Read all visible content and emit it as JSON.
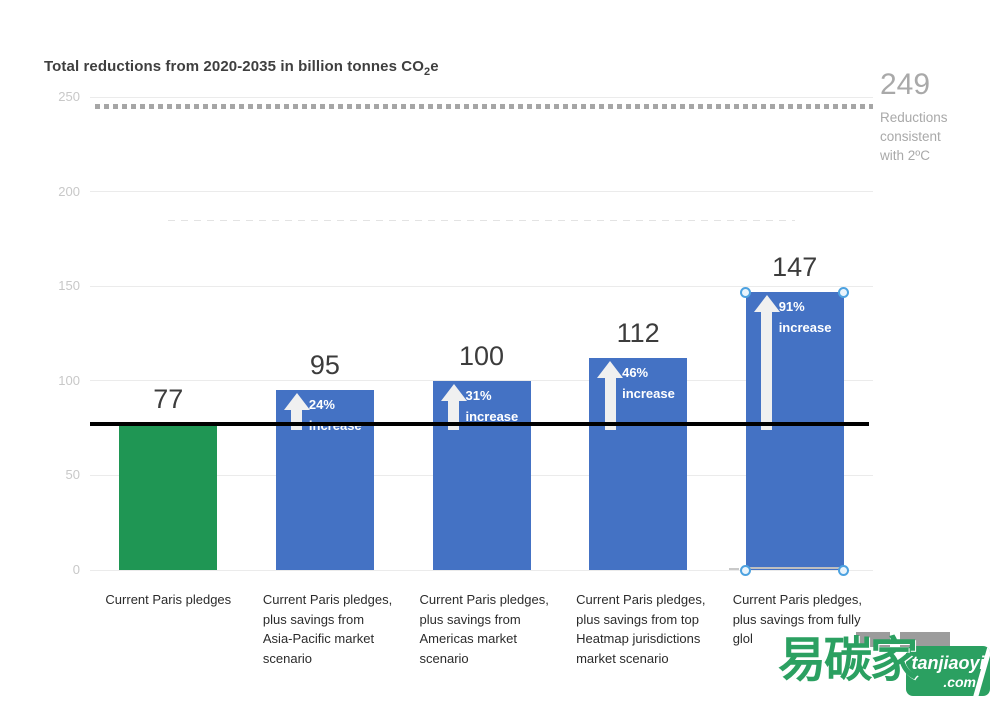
{
  "title": {
    "prefix": "Total reductions from 2020-2035 in billion tonnes CO",
    "subscript": "2",
    "suffix": "e"
  },
  "annotation_249": {
    "value": "249",
    "lines": [
      "Reductions",
      "consistent",
      "with 2ºC"
    ]
  },
  "watermark": {
    "cjk": "易碳家",
    "site": "tanjiaoyi",
    "tld": ".com"
  },
  "colors": {
    "green_bar": "#1f9654",
    "blue_bar": "#4472c4",
    "baseline": "#000000",
    "dotted_reference": "#a6a6a6",
    "faint_reference": "#e3e3e3",
    "gridline": "#ebebeb",
    "value_text": "#3c3c3c",
    "axis_text": "#c8c8c8",
    "annotation_text": "#a9a9a9",
    "watermark_green": "#2ba061"
  },
  "chart_data": {
    "type": "bar",
    "title": "Total reductions from 2020-2035 in billion tonnes CO2e",
    "xlabel": "",
    "ylabel": "billion tonnes CO2e",
    "ylim": [
      0,
      250
    ],
    "yticks": [
      250,
      200,
      150,
      100,
      50,
      0
    ],
    "grid": true,
    "categories": [
      "Current Paris pledges",
      "Current Paris pledges, plus savings from Asia-Pacific market scenario",
      "Current Paris pledges, plus savings from Americas market scenario",
      "Current Paris pledges, plus savings from top Heatmap jurisdictions market scenario",
      "Current Paris pledges, plus savings from fully glol"
    ],
    "category_lines": [
      [
        "Current Paris pledges"
      ],
      [
        "Current Paris pledges,",
        "plus savings from",
        "Asia-Pacific market",
        "scenario"
      ],
      [
        "Current Paris pledges,",
        "plus savings from",
        "Americas market",
        "scenario"
      ],
      [
        "Current Paris pledges,",
        "plus savings from top",
        "Heatmap jurisdictions",
        "market scenario"
      ],
      [
        "Current Paris pledges,",
        "plus savings from fully",
        "glol"
      ]
    ],
    "values": [
      77,
      95,
      100,
      112,
      147
    ],
    "bar_colors": [
      "#1f9654",
      "#4472c4",
      "#4472c4",
      "#4472c4",
      "#4472c4"
    ],
    "increase_labels": [
      null,
      "24% increase",
      "31% increase",
      "46% increase",
      "91% increase"
    ],
    "selected_bar_index": 4,
    "reference_lines": [
      {
        "value": 249,
        "style": "dotted",
        "color": "#a6a6a6",
        "label": "249 Reductions consistent with 2ºC"
      },
      {
        "value": 185,
        "style": "dashed-faint",
        "color": "#e3e3e3",
        "label": ""
      },
      {
        "value": 77,
        "style": "solid",
        "color": "#000000",
        "label": ""
      }
    ],
    "legend": null
  }
}
